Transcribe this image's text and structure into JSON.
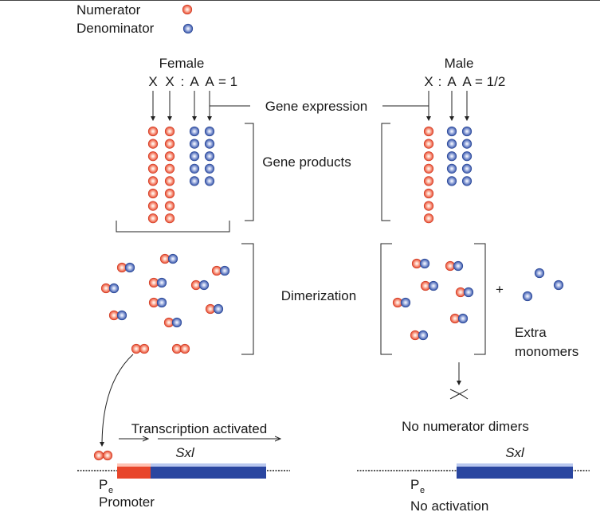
{
  "legend": {
    "numerator": "Numerator",
    "denominator": "Denominator"
  },
  "colors": {
    "numerator": "#e8452a",
    "denominator": "#2f4fa8",
    "line": "#222222",
    "gene_bar": "#2a46a0",
    "promoter_bar": "#e8452a",
    "highlight": "#b9c8ef"
  },
  "female": {
    "title": "Female",
    "ratio_x1": "X",
    "ratio_x2": "X",
    "ratio_colon": ":",
    "ratio_a1": "A",
    "ratio_a2": "A",
    "ratio_value": "= 1",
    "numerator_count": 16,
    "denominator_count": 10
  },
  "male": {
    "title": "Male",
    "ratio_x1": "X",
    "ratio_colon": ":",
    "ratio_a1": "A",
    "ratio_a2": "A",
    "ratio_value": "= 1/2",
    "numerator_count": 8,
    "denominator_count": 10
  },
  "labels": {
    "gene_expression": "Gene expression",
    "gene_products": "Gene products",
    "dimerization": "Dimerization",
    "plus": "+",
    "extra_monomers_1": "Extra",
    "extra_monomers_2": "monomers",
    "transcription_activated": "Transcription activated",
    "no_numerator_dimers": "No numerator dimers",
    "gene_name": "Sxl",
    "promoter_p": "P",
    "promoter_sub": "e",
    "promoter": "Promoter",
    "no_activation": "No activation"
  }
}
